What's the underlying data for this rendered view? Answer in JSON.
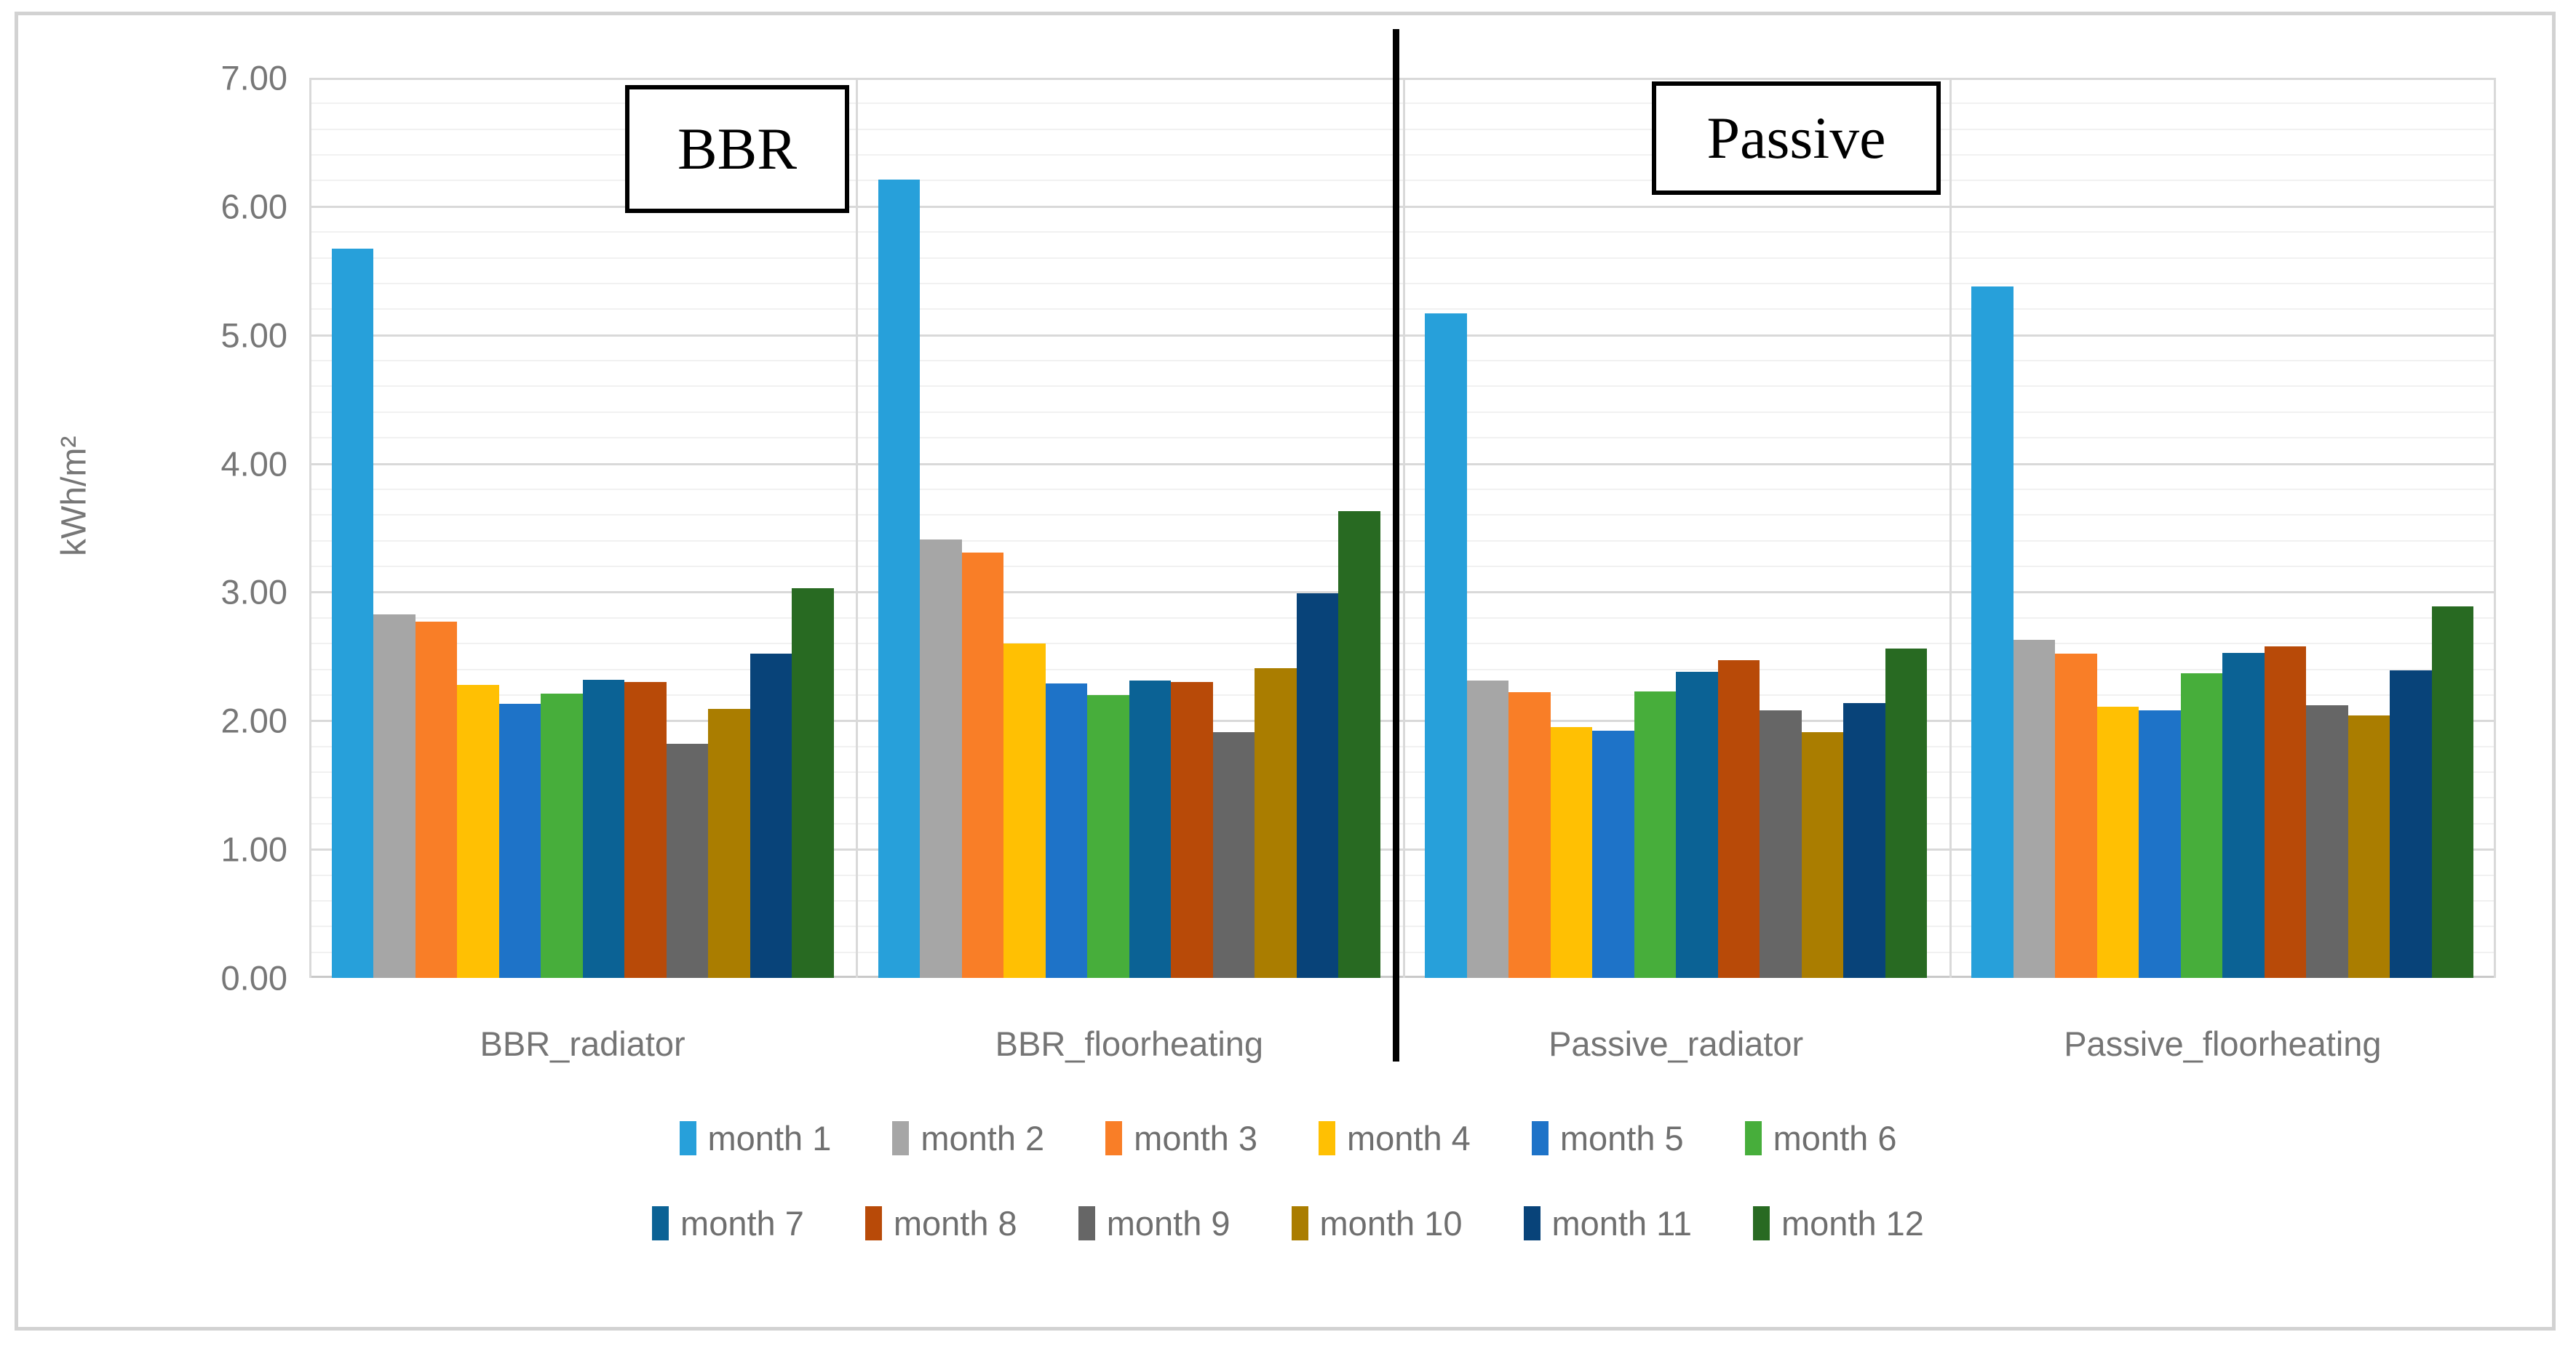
{
  "chart_data": {
    "type": "bar",
    "title_boxes": [
      {
        "label": "BBR"
      },
      {
        "label": "Passive"
      }
    ],
    "ylabel": "kWh/m²",
    "ylim": [
      0,
      7
    ],
    "ytick_step": 1.0,
    "minor_grid_step": 0.2,
    "grid": "horizontal major and minor gridlines on",
    "yticks": [
      "0.00",
      "1.00",
      "2.00",
      "3.00",
      "4.00",
      "5.00",
      "6.00",
      "7.00"
    ],
    "categories": [
      "BBR_radiator",
      "BBR_floorheating",
      "Passive_radiator",
      "Passive_floorheating"
    ],
    "divider_between": "BBR_floorheating and Passive_radiator",
    "legend_position": "bottom, two centered rows of six",
    "series": [
      {
        "name": "month 1",
        "color": "#27a0da",
        "values": [
          5.67,
          6.21,
          5.17,
          5.38
        ]
      },
      {
        "name": "month 2",
        "color": "#a6a6a6",
        "values": [
          2.83,
          3.41,
          2.31,
          2.63
        ]
      },
      {
        "name": "month 3",
        "color": "#f97e27",
        "values": [
          2.77,
          3.31,
          2.22,
          2.52
        ]
      },
      {
        "name": "month 4",
        "color": "#ffc003",
        "values": [
          2.28,
          2.6,
          1.95,
          2.11
        ]
      },
      {
        "name": "month 5",
        "color": "#1e73c8",
        "values": [
          2.13,
          2.29,
          1.92,
          2.08
        ]
      },
      {
        "name": "month 6",
        "color": "#47ae3b",
        "values": [
          2.21,
          2.2,
          2.23,
          2.37
        ]
      },
      {
        "name": "month 7",
        "color": "#0b6295",
        "values": [
          2.32,
          2.31,
          2.38,
          2.53
        ]
      },
      {
        "name": "month 8",
        "color": "#b84a08",
        "values": [
          2.3,
          2.3,
          2.47,
          2.58
        ]
      },
      {
        "name": "month 9",
        "color": "#666666",
        "values": [
          1.82,
          1.91,
          2.08,
          2.12
        ]
      },
      {
        "name": "month 10",
        "color": "#aa7d00",
        "values": [
          2.09,
          2.41,
          1.91,
          2.04
        ]
      },
      {
        "name": "month 11",
        "color": "#084379",
        "values": [
          2.52,
          2.99,
          2.14,
          2.39
        ]
      },
      {
        "name": "month 12",
        "color": "#286a22",
        "values": [
          3.03,
          3.63,
          2.56,
          2.89
        ]
      }
    ]
  },
  "layout_colors": {
    "frame_border": "#d2d2d2",
    "major_grid": "#d9d9d9",
    "minor_grid": "#f1f1f1",
    "tick_text": "#777777",
    "divider": "#000000"
  }
}
